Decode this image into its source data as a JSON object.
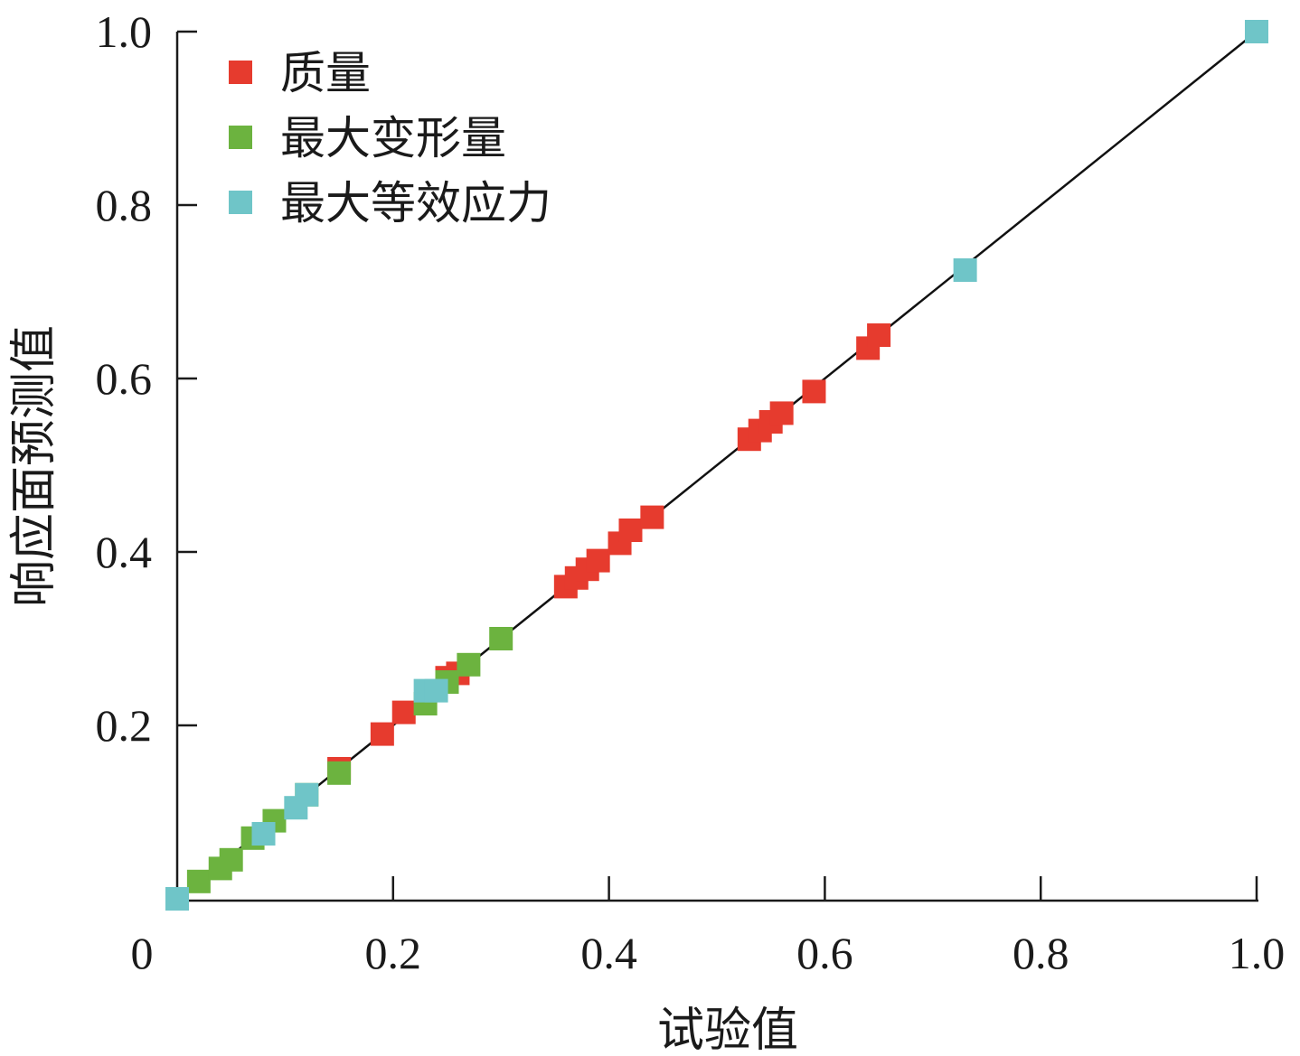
{
  "chart_data": {
    "type": "scatter",
    "xlabel": "试验值",
    "ylabel": "响应面预测值",
    "xlim": [
      0,
      1.0
    ],
    "ylim": [
      0,
      1.0
    ],
    "x_ticks": [
      {
        "value": 0,
        "label": "0"
      },
      {
        "value": 0.2,
        "label": "0.2"
      },
      {
        "value": 0.4,
        "label": "0.4"
      },
      {
        "value": 0.6,
        "label": "0.6"
      },
      {
        "value": 0.8,
        "label": "0.8"
      },
      {
        "value": 1.0,
        "label": "1.0"
      }
    ],
    "y_ticks": [
      {
        "value": 0.2,
        "label": "0.2"
      },
      {
        "value": 0.4,
        "label": "0.4"
      },
      {
        "value": 0.6,
        "label": "0.6"
      },
      {
        "value": 0.8,
        "label": "0.8"
      },
      {
        "value": 1.0,
        "label": "1.0"
      }
    ],
    "grid": false,
    "legend_position": "top-left",
    "reference_line": {
      "x": [
        0,
        1.0
      ],
      "y": [
        0,
        1.0
      ]
    },
    "series": [
      {
        "name": "质量",
        "color": "#e63b2e",
        "points": [
          {
            "x": 0.0,
            "y": 0.0
          },
          {
            "x": 0.15,
            "y": 0.15
          },
          {
            "x": 0.19,
            "y": 0.19
          },
          {
            "x": 0.21,
            "y": 0.215
          },
          {
            "x": 0.25,
            "y": 0.255
          },
          {
            "x": 0.26,
            "y": 0.26
          },
          {
            "x": 0.36,
            "y": 0.36
          },
          {
            "x": 0.37,
            "y": 0.37
          },
          {
            "x": 0.38,
            "y": 0.38
          },
          {
            "x": 0.39,
            "y": 0.39
          },
          {
            "x": 0.41,
            "y": 0.41
          },
          {
            "x": 0.42,
            "y": 0.425
          },
          {
            "x": 0.44,
            "y": 0.44
          },
          {
            "x": 0.53,
            "y": 0.53
          },
          {
            "x": 0.54,
            "y": 0.54
          },
          {
            "x": 0.55,
            "y": 0.55
          },
          {
            "x": 0.56,
            "y": 0.56
          },
          {
            "x": 0.59,
            "y": 0.585
          },
          {
            "x": 0.64,
            "y": 0.635
          },
          {
            "x": 0.65,
            "y": 0.65
          },
          {
            "x": 1.0,
            "y": 1.0
          }
        ]
      },
      {
        "name": "最大变形量",
        "color": "#6cb33f",
        "points": [
          {
            "x": 0.0,
            "y": 0.0
          },
          {
            "x": 0.02,
            "y": 0.02
          },
          {
            "x": 0.04,
            "y": 0.035
          },
          {
            "x": 0.05,
            "y": 0.045
          },
          {
            "x": 0.07,
            "y": 0.07
          },
          {
            "x": 0.09,
            "y": 0.09
          },
          {
            "x": 0.12,
            "y": 0.12
          },
          {
            "x": 0.15,
            "y": 0.145
          },
          {
            "x": 0.23,
            "y": 0.225
          },
          {
            "x": 0.25,
            "y": 0.25
          },
          {
            "x": 0.27,
            "y": 0.27
          },
          {
            "x": 0.3,
            "y": 0.3
          },
          {
            "x": 1.0,
            "y": 1.0
          }
        ]
      },
      {
        "name": "最大等效应力",
        "color": "#6fc5c8",
        "points": [
          {
            "x": 0.0,
            "y": 0.0
          },
          {
            "x": 0.08,
            "y": 0.075
          },
          {
            "x": 0.11,
            "y": 0.105
          },
          {
            "x": 0.12,
            "y": 0.12
          },
          {
            "x": 0.23,
            "y": 0.24
          },
          {
            "x": 0.24,
            "y": 0.24
          },
          {
            "x": 0.73,
            "y": 0.725
          },
          {
            "x": 1.0,
            "y": 1.0
          }
        ]
      }
    ]
  }
}
